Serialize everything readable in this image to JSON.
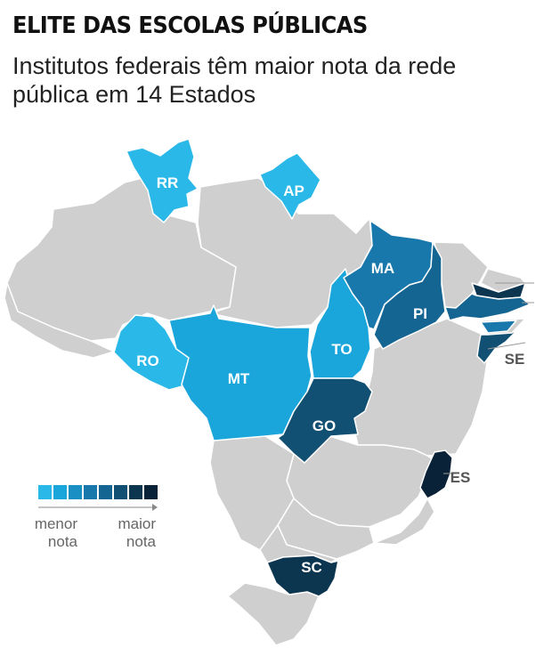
{
  "header": {
    "title": "ELITE DAS ESCOLAS PÚBLICAS",
    "subtitle": "Institutos federais têm maior nota da rede pública em 14 Estados"
  },
  "colors": {
    "background": "#ffffff",
    "other_states": "#cfcfcf",
    "border": "#ffffff",
    "callout_line": "#999999",
    "scale": [
      "#29b8e8",
      "#1ba6db",
      "#1a8fc4",
      "#1878ac",
      "#156592",
      "#114f73",
      "#0c3550",
      "#0a2238"
    ]
  },
  "states": [
    {
      "abbr": "RR",
      "level": 0
    },
    {
      "abbr": "AP",
      "level": 0
    },
    {
      "abbr": "RO",
      "level": 0
    },
    {
      "abbr": "MT",
      "level": 1
    },
    {
      "abbr": "TO",
      "level": 1
    },
    {
      "abbr": "MA",
      "level": 3
    },
    {
      "abbr": "PI",
      "level": 4
    },
    {
      "abbr": "GO",
      "level": 5
    },
    {
      "abbr": "SE",
      "level": 5
    },
    {
      "abbr": "ES",
      "level": 7
    },
    {
      "abbr": "SC",
      "level": 6
    },
    {
      "abbr": "",
      "level": 6
    },
    {
      "abbr": "",
      "level": 4
    },
    {
      "abbr": "",
      "level": 3
    }
  ],
  "legend": {
    "min_label": [
      "menor",
      "nota"
    ],
    "max_label": [
      "maior",
      "nota"
    ],
    "levels": 8
  }
}
